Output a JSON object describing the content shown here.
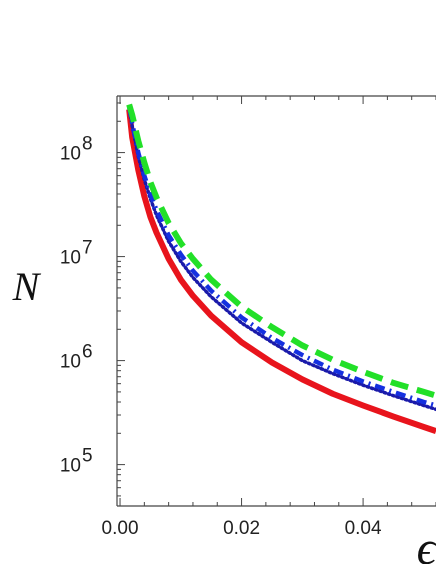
{
  "chart_data": {
    "type": "line",
    "xlabel": "ϵ",
    "ylabel": "N",
    "x_scale": "linear",
    "y_scale": "log",
    "xlim": [
      -0.0005,
      0.052
    ],
    "ylim": [
      40000,
      350000000
    ],
    "x_ticks": [
      {
        "value": 0.0,
        "label": "0.00"
      },
      {
        "value": 0.02,
        "label": "0.02"
      },
      {
        "value": 0.04,
        "label": "0.04"
      }
    ],
    "y_ticks": [
      {
        "value": 100000,
        "base": "10",
        "exp": "5"
      },
      {
        "value": 1000000,
        "base": "10",
        "exp": "6"
      },
      {
        "value": 10000000,
        "base": "10",
        "exp": "7"
      },
      {
        "value": 100000000,
        "base": "10",
        "exp": "8"
      }
    ],
    "grid": false,
    "series": [
      {
        "style": "solid",
        "color": "#e8141c",
        "x": [
          0.0015,
          0.002,
          0.003,
          0.004,
          0.005,
          0.006,
          0.008,
          0.01,
          0.012,
          0.015,
          0.02,
          0.025,
          0.03,
          0.035,
          0.04,
          0.045,
          0.05,
          0.052
        ],
        "y": [
          260000000,
          140000000,
          68000000,
          38000000,
          24000000,
          17000000,
          9500000,
          6000000,
          4200000,
          2700000,
          1500000,
          960000,
          660000,
          480000,
          370000,
          290000,
          230000,
          210000
        ]
      },
      {
        "style": "dotted",
        "color": "#1a1aaa",
        "x": [
          0.0015,
          0.002,
          0.003,
          0.004,
          0.005,
          0.006,
          0.008,
          0.01,
          0.012,
          0.015,
          0.02,
          0.025,
          0.03,
          0.035,
          0.04,
          0.045,
          0.05,
          0.052
        ],
        "y": [
          270000000,
          180000000,
          92000000,
          55000000,
          36000000,
          25000000,
          14000000,
          9000000,
          6300000,
          4100000,
          2300000,
          1500000,
          1000000,
          750000,
          580000,
          460000,
          370000,
          340000
        ]
      },
      {
        "style": "dashdot",
        "color": "#1530e0",
        "x": [
          0.0015,
          0.002,
          0.003,
          0.004,
          0.005,
          0.006,
          0.008,
          0.01,
          0.012,
          0.015,
          0.02,
          0.025,
          0.03,
          0.035,
          0.04,
          0.045,
          0.05,
          0.052
        ],
        "y": [
          275000000,
          190000000,
          100000000,
          60000000,
          40000000,
          28000000,
          16000000,
          10500000,
          7300000,
          4700000,
          2600000,
          1650000,
          1130000,
          820000,
          630000,
          500000,
          400000,
          370000
        ]
      },
      {
        "style": "dashed",
        "color": "#22e028",
        "x": [
          0.0015,
          0.002,
          0.003,
          0.004,
          0.005,
          0.006,
          0.008,
          0.01,
          0.012,
          0.015,
          0.02,
          0.025,
          0.03,
          0.035,
          0.04,
          0.045,
          0.05,
          0.052
        ],
        "y": [
          290000000,
          230000000,
          130000000,
          80000000,
          52000000,
          37000000,
          21000000,
          13500000,
          9500000,
          6000000,
          3300000,
          2100000,
          1400000,
          1020000,
          780000,
          610000,
          500000,
          460000
        ]
      }
    ]
  }
}
